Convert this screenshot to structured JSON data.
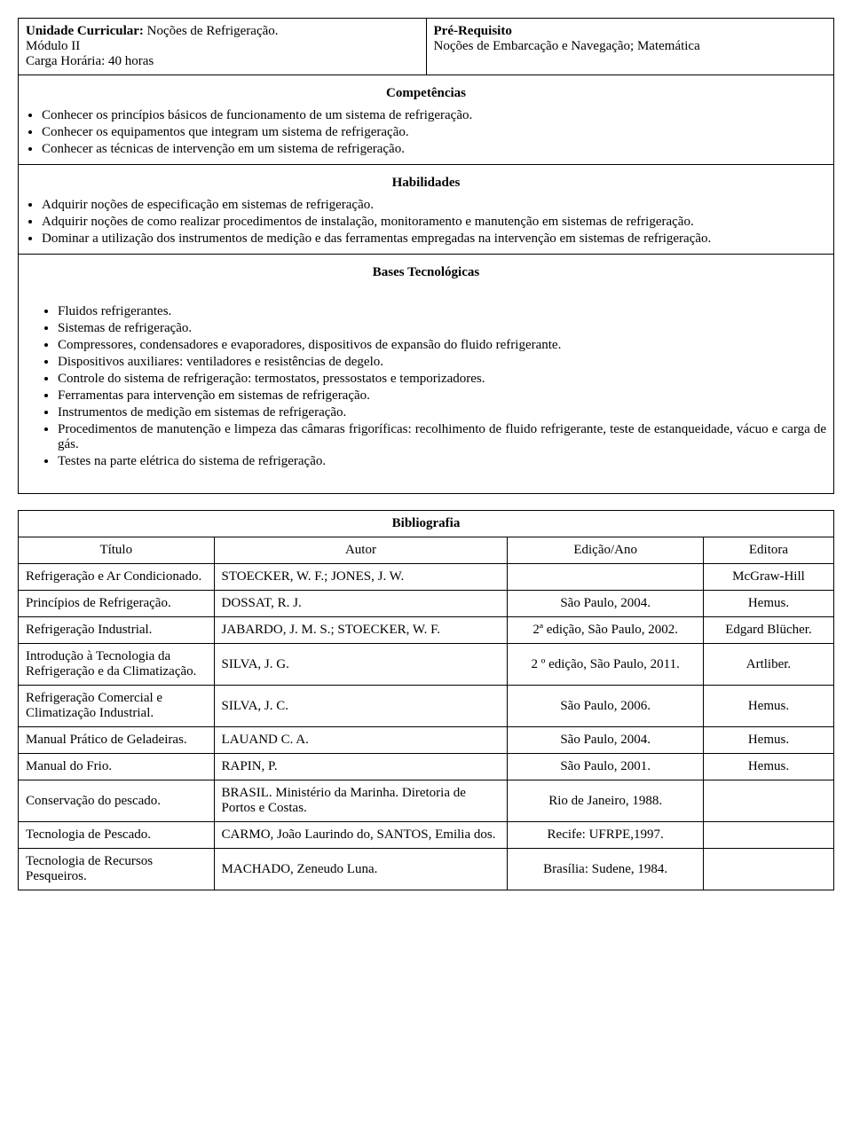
{
  "header": {
    "left": {
      "uc_label": "Unidade Curricular:",
      "uc_value": "  Noções de Refrigeração.",
      "modulo": "Módulo II",
      "carga": "Carga Horária: 40 horas"
    },
    "right": {
      "prereq_label": "Pré-Requisito",
      "prereq_value": "Noções de Embarcação e Navegação; Matemática"
    }
  },
  "sections": {
    "competencias_title": "Competências",
    "competencias_items": [
      "Conhecer os princípios básicos de funcionamento de um sistema de refrigeração.",
      "Conhecer os equipamentos que integram um sistema de refrigeração.",
      "Conhecer as técnicas de intervenção em um sistema de refrigeração."
    ],
    "habilidades_title": "Habilidades",
    "habilidades_items": [
      "Adquirir noções de especificação em sistemas de refrigeração.",
      "Adquirir noções de como realizar procedimentos de instalação, monitoramento e manutenção em sistemas de refrigeração.",
      "Dominar a utilização dos instrumentos de medição e das ferramentas empregadas na intervenção em sistemas de refrigeração."
    ],
    "bases_title": "Bases Tecnológicas",
    "bases_items": [
      "Fluidos refrigerantes.",
      "Sistemas de refrigeração.",
      "Compressores, condensadores e evaporadores, dispositivos de expansão do fluido refrigerante.",
      "Dispositivos auxiliares: ventiladores e resistências de degelo.",
      "Controle do sistema de refrigeração: termostatos, pressostatos e temporizadores.",
      "Ferramentas para intervenção em sistemas de refrigeração.",
      "Instrumentos de medição em sistemas de refrigeração.",
      "Procedimentos de manutenção e limpeza das câmaras frigoríficas: recolhimento de fluido refrigerante, teste de estanqueidade, vácuo e carga de gás.",
      "Testes na parte elétrica do sistema de refrigeração."
    ]
  },
  "bibliography": {
    "title": "Bibliografia",
    "columns": [
      "Título",
      "Autor",
      "Edição/Ano",
      "Editora"
    ],
    "rows": [
      [
        "Refrigeração e Ar Condicionado.",
        "STOECKER, W. F.; JONES, J. W.",
        "",
        "McGraw-Hill"
      ],
      [
        "Princípios de Refrigeração.",
        "DOSSAT, R. J.",
        "São Paulo, 2004.",
        "Hemus."
      ],
      [
        "Refrigeração Industrial.",
        "JABARDO, J. M. S.; STOECKER, W. F.",
        "2ª edição, São Paulo, 2002.",
        "Edgard Blücher."
      ],
      [
        "Introdução à Tecnologia da Refrigeração e da Climatização.",
        "SILVA, J. G.",
        "2 º edição, São Paulo, 2011.",
        "Artliber."
      ],
      [
        "Refrigeração Comercial e Climatização Industrial.",
        "SILVA, J. C.",
        "São Paulo, 2006.",
        "Hemus."
      ],
      [
        "Manual Prático de Geladeiras.",
        "LAUAND C. A.",
        "São Paulo, 2004.",
        "Hemus."
      ],
      [
        "Manual do Frio.",
        "RAPIN, P.",
        "São Paulo, 2001.",
        "Hemus."
      ],
      [
        "Conservação do pescado.",
        "BRASIL. Ministério da Marinha. Diretoria de Portos e Costas.",
        "Rio de Janeiro, 1988.",
        ""
      ],
      [
        "Tecnologia de Pescado.",
        "CARMO, João Laurindo do, SANTOS, Emilia dos.",
        "Recife: UFRPE,1997.",
        ""
      ],
      [
        "Tecnologia de Recursos Pesqueiros.",
        "MACHADO, Zeneudo Luna.",
        "Brasília: Sudene, 1984.",
        ""
      ]
    ]
  }
}
